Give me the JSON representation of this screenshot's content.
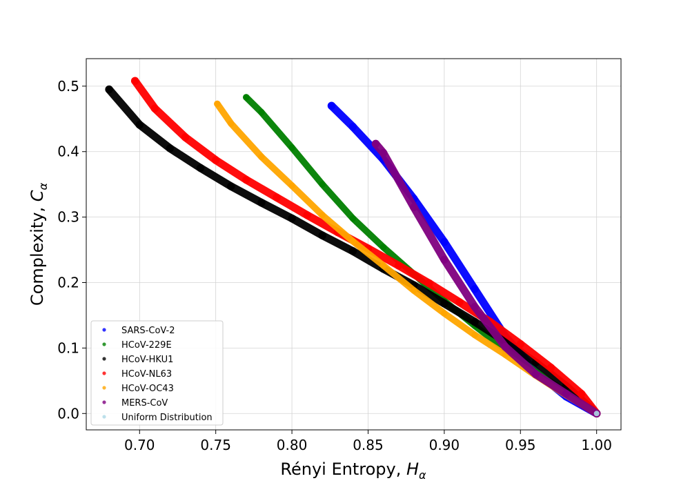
{
  "chart_data": {
    "type": "scatter",
    "xlabel": "Rényi Entropy, ",
    "xlabel_symbol": "H",
    "xlabel_sub": "α",
    "ylabel": "Complexity, ",
    "ylabel_symbol": "C",
    "ylabel_sub": "α",
    "xlim": [
      0.665,
      1.016
    ],
    "ylim": [
      -0.025,
      0.542
    ],
    "xticks": [
      0.7,
      0.75,
      0.8,
      0.85,
      0.9,
      0.95,
      1.0
    ],
    "xtick_labels": [
      "0.70",
      "0.75",
      "0.80",
      "0.85",
      "0.90",
      "0.95",
      "1.00"
    ],
    "yticks": [
      0.0,
      0.1,
      0.2,
      0.3,
      0.4,
      0.5
    ],
    "ytick_labels": [
      "0.0",
      "0.1",
      "0.2",
      "0.3",
      "0.4",
      "0.5"
    ],
    "grid": true,
    "legend_position": "lower-left",
    "series": [
      {
        "name": "SARS-CoV-2",
        "color": "#0000ff",
        "width": 0.006,
        "x": [
          0.826,
          0.84,
          0.86,
          0.88,
          0.9,
          0.92,
          0.94,
          0.96,
          0.98,
          1.0
        ],
        "y": [
          0.47,
          0.438,
          0.388,
          0.328,
          0.262,
          0.19,
          0.118,
          0.064,
          0.026,
          0.0
        ]
      },
      {
        "name": "HCoV-229E",
        "color": "#008000",
        "width": 0.005,
        "x": [
          0.77,
          0.78,
          0.8,
          0.82,
          0.84,
          0.86,
          0.88,
          0.9,
          0.92,
          0.94,
          0.96,
          0.98,
          1.0
        ],
        "y": [
          0.483,
          0.46,
          0.406,
          0.35,
          0.298,
          0.254,
          0.213,
          0.172,
          0.134,
          0.098,
          0.064,
          0.032,
          0.0
        ]
      },
      {
        "name": "HCoV-HKU1",
        "color": "#000000",
        "width": 0.006,
        "x": [
          0.68,
          0.7,
          0.72,
          0.74,
          0.76,
          0.78,
          0.8,
          0.82,
          0.84,
          0.86,
          0.88,
          0.9,
          0.92,
          0.94,
          0.96,
          0.98,
          1.0
        ],
        "y": [
          0.495,
          0.441,
          0.405,
          0.375,
          0.347,
          0.322,
          0.298,
          0.272,
          0.248,
          0.221,
          0.196,
          0.168,
          0.14,
          0.11,
          0.078,
          0.042,
          0.0
        ]
      },
      {
        "name": "HCoV-NL63",
        "color": "#ff0000",
        "width": 0.006,
        "x": [
          0.697,
          0.71,
          0.73,
          0.75,
          0.77,
          0.79,
          0.81,
          0.83,
          0.85,
          0.87,
          0.89,
          0.91,
          0.93,
          0.95,
          0.97,
          0.99,
          1.0
        ],
        "y": [
          0.508,
          0.466,
          0.422,
          0.387,
          0.357,
          0.33,
          0.303,
          0.277,
          0.252,
          0.226,
          0.199,
          0.17,
          0.14,
          0.106,
          0.07,
          0.03,
          0.0
        ]
      },
      {
        "name": "HCoV-OC43",
        "color": "#ffa500",
        "width": 0.005,
        "x": [
          0.751,
          0.76,
          0.78,
          0.8,
          0.82,
          0.84,
          0.86,
          0.88,
          0.9,
          0.92,
          0.94,
          0.96,
          0.98,
          1.0
        ],
        "y": [
          0.473,
          0.443,
          0.392,
          0.348,
          0.303,
          0.263,
          0.226,
          0.188,
          0.153,
          0.12,
          0.09,
          0.058,
          0.028,
          0.0
        ]
      },
      {
        "name": "MERS-CoV",
        "color": "#800080",
        "width": 0.006,
        "x": [
          0.855,
          0.86,
          0.88,
          0.9,
          0.92,
          0.94,
          0.96,
          0.98,
          1.0
        ],
        "y": [
          0.412,
          0.398,
          0.315,
          0.235,
          0.163,
          0.102,
          0.06,
          0.03,
          0.0
        ]
      },
      {
        "name": "Uniform Distribution",
        "color": "#add8e6",
        "width": 0.002,
        "x": [
          1.0
        ],
        "y": [
          0.0
        ]
      }
    ]
  }
}
